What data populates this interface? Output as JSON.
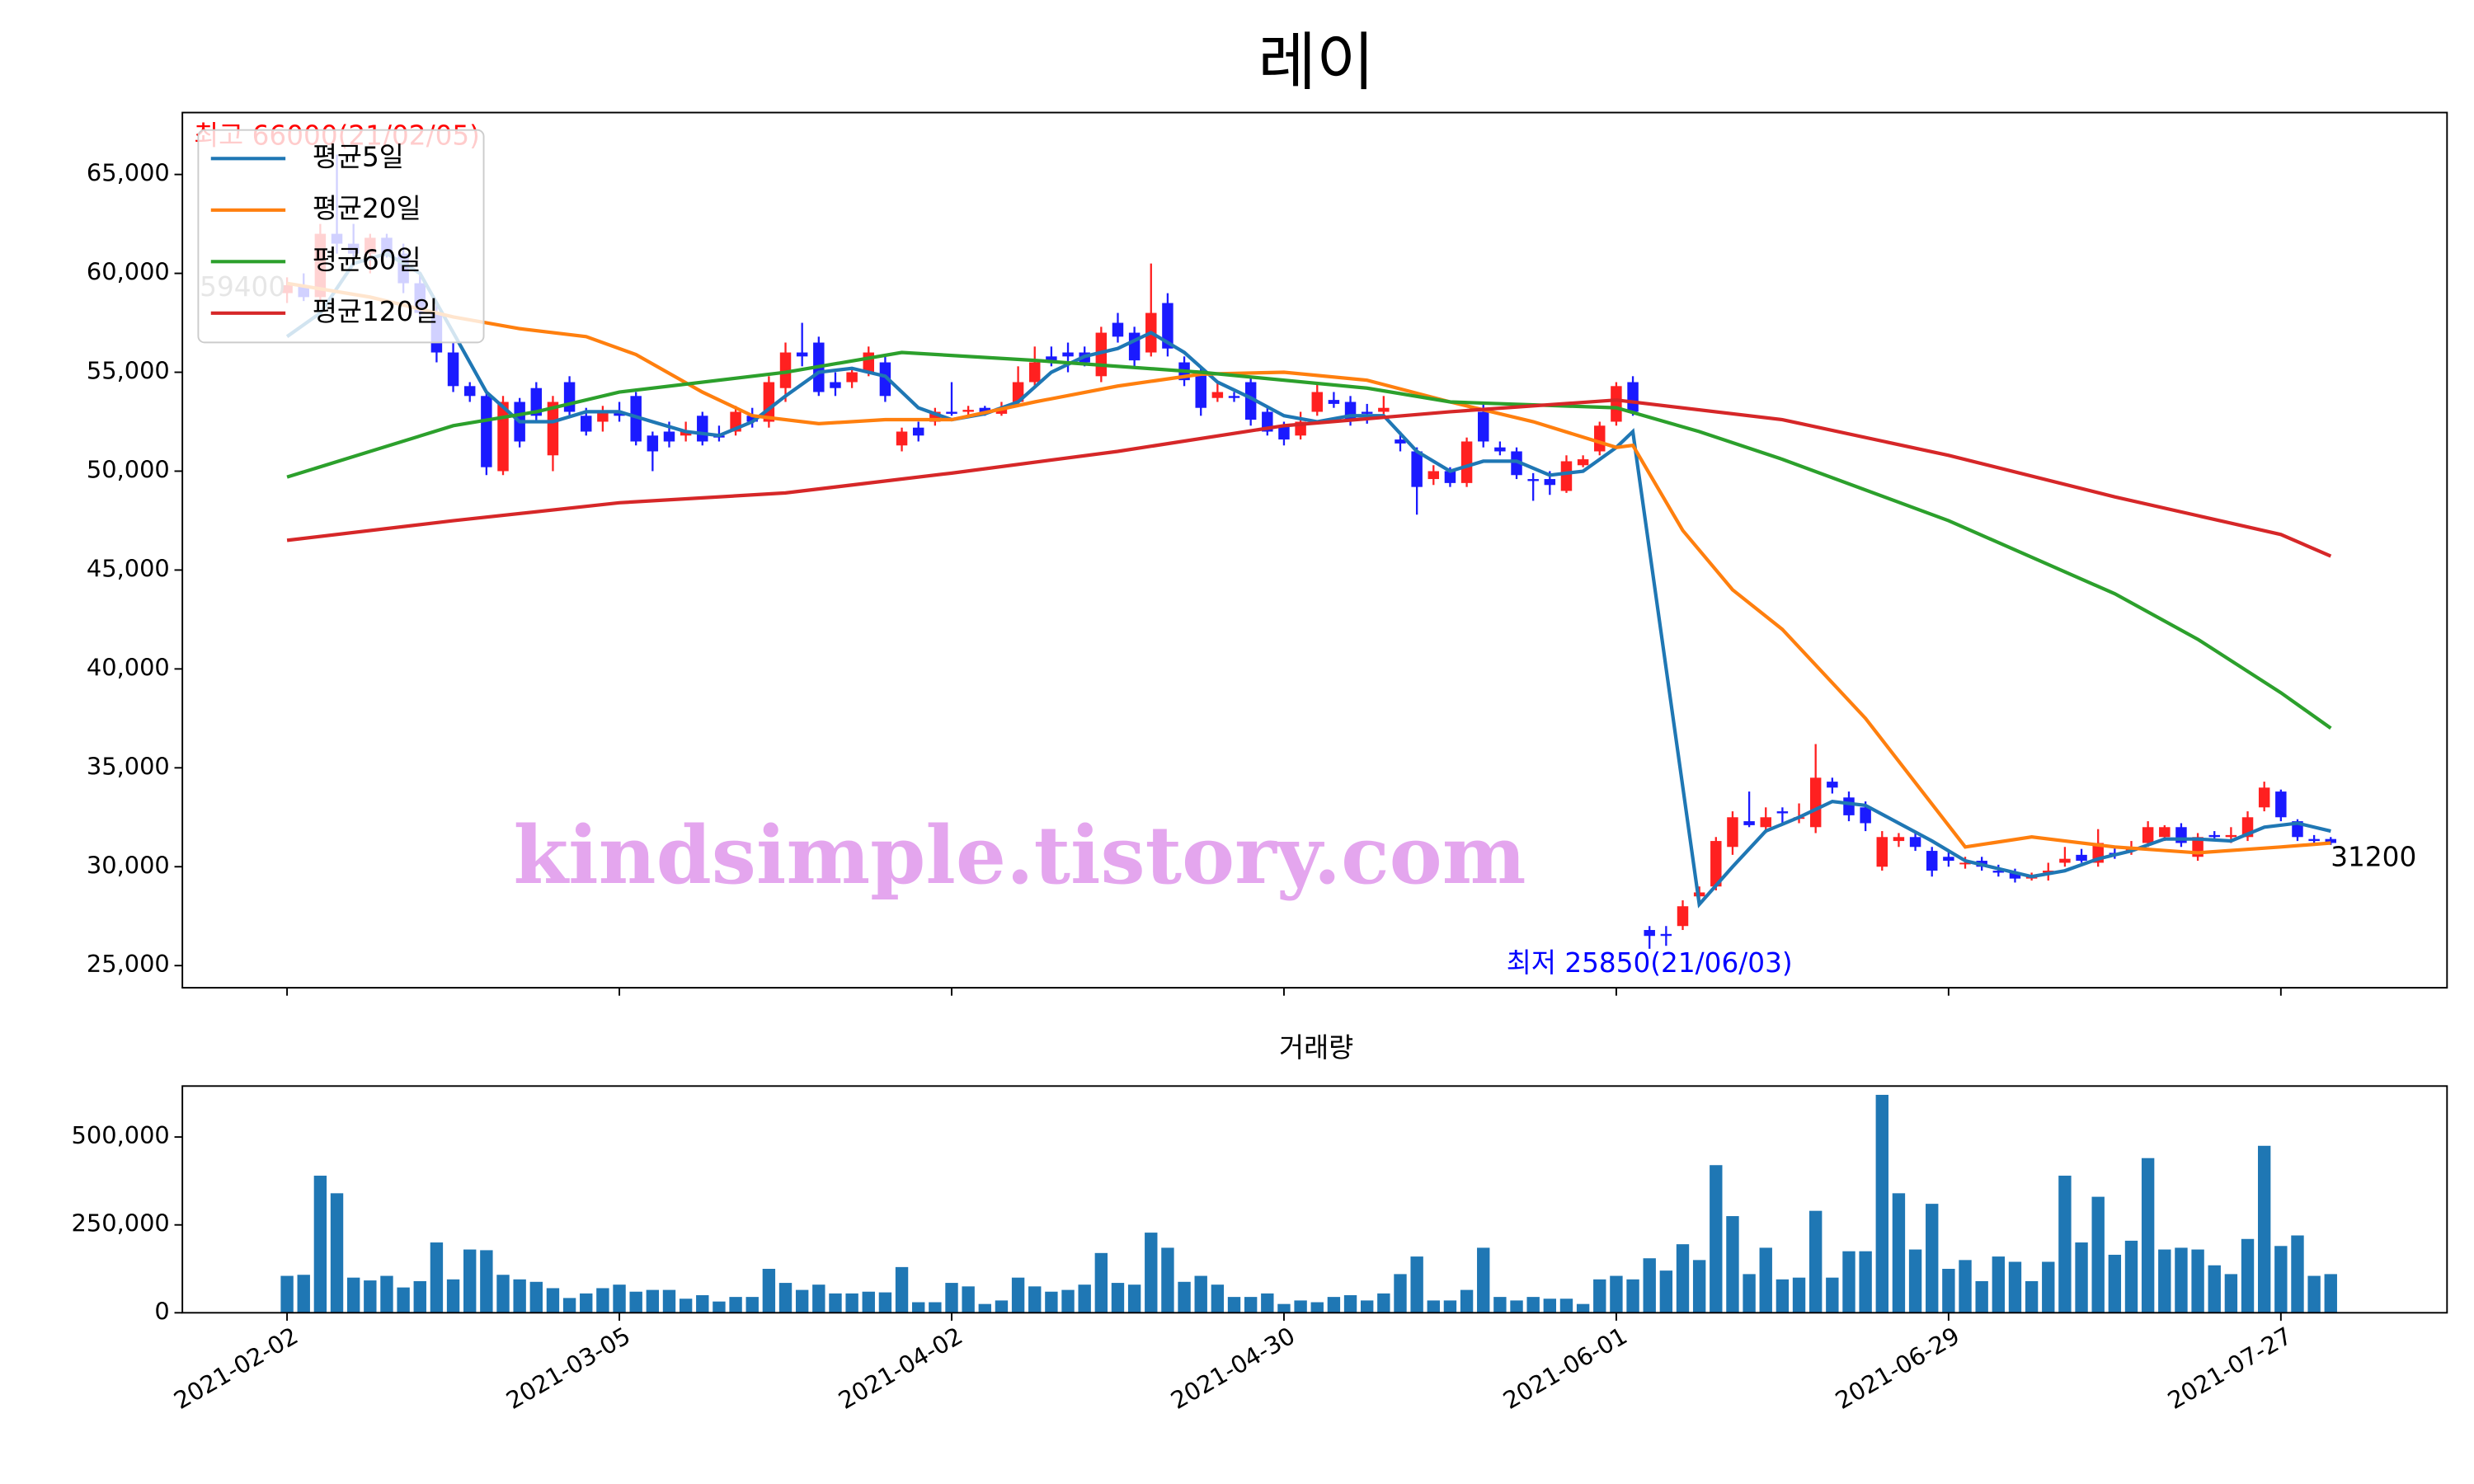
{
  "chart_data": [
    {
      "type": "candlestick",
      "title": "레이",
      "xlim": [
        -6.3,
        130
      ],
      "ylim": [
        23880,
        68130
      ],
      "yticks": [
        {
          "value": 25000,
          "label": "25,000"
        },
        {
          "value": 30000,
          "label": "30,000"
        },
        {
          "value": 35000,
          "label": "35,000"
        },
        {
          "value": 40000,
          "label": "40,000"
        },
        {
          "value": 45000,
          "label": "45,000"
        },
        {
          "value": 50000,
          "label": "50,000"
        },
        {
          "value": 55000,
          "label": "55,000"
        },
        {
          "value": 60000,
          "label": "60,000"
        },
        {
          "value": 65000,
          "label": "65,000"
        }
      ],
      "up_color": "#ff2020",
      "down_color": "#1a1aff",
      "open": [
        59000,
        59400,
        58800,
        62000,
        61500,
        61000,
        61800,
        61000,
        59500,
        58000,
        56000,
        54300,
        53800,
        50000,
        53500,
        54200,
        50800,
        54500,
        52800,
        52500,
        53000,
        53800,
        51800,
        52000,
        51800,
        52800,
        51800,
        52000,
        52800,
        52500,
        54200,
        56000,
        56500,
        54500,
        54500,
        55000,
        55500,
        51300,
        52200,
        52500,
        53000,
        53000,
        53200,
        52900,
        53500,
        54500,
        55800,
        56000,
        56000,
        54800,
        57500,
        57000,
        56000,
        58500,
        55500,
        55000,
        53700,
        53800,
        54500,
        53000,
        52300,
        51800,
        53000,
        53600,
        53500,
        53000,
        53000,
        51600,
        51000,
        49600,
        50000,
        49400,
        53000,
        51200,
        51000,
        49600,
        49600,
        49000,
        50300,
        51000,
        52500,
        54500,
        26800,
        26600,
        27000,
        28500,
        29000,
        31000,
        32300,
        32000,
        32800,
        32500,
        32000,
        34300,
        33500,
        33000,
        30000,
        31300,
        31500,
        30800,
        30500,
        30200,
        30300,
        29800,
        29700,
        29400,
        29700,
        30200,
        30600,
        30200,
        30700,
        30800,
        31200,
        31500,
        32000,
        30500,
        31600,
        31500,
        31500,
        33000,
        33800,
        32300,
        31400,
        31400
      ],
      "high": [
        59800,
        60000,
        62500,
        66000,
        62500,
        62000,
        62000,
        61500,
        60000,
        58500,
        56500,
        54500,
        54000,
        53800,
        53700,
        54500,
        53800,
        54800,
        53200,
        53300,
        53500,
        54000,
        52000,
        52500,
        52500,
        53000,
        52300,
        53300,
        53200,
        54800,
        56500,
        57500,
        56800,
        55000,
        55200,
        56300,
        55800,
        52200,
        52500,
        53200,
        54500,
        53300,
        53300,
        53500,
        55300,
        56300,
        56300,
        56500,
        56300,
        57300,
        58000,
        57300,
        60500,
        59000,
        55800,
        55300,
        54500,
        54000,
        54800,
        53200,
        52500,
        53000,
        54500,
        54000,
        53800,
        53400,
        53800,
        52000,
        51200,
        50300,
        50200,
        51700,
        53400,
        51500,
        51200,
        49900,
        50000,
        50800,
        50800,
        52500,
        54500,
        54800,
        27000,
        27000,
        28300,
        29000,
        31500,
        32800,
        33800,
        33000,
        33000,
        33200,
        36200,
        34500,
        33800,
        33300,
        31800,
        31700,
        31700,
        31000,
        30800,
        30500,
        30500,
        30100,
        29900,
        29700,
        30200,
        31000,
        30900,
        31900,
        31000,
        31300,
        32300,
        32100,
        32200,
        31700,
        31800,
        32000,
        32800,
        34300,
        33900,
        32400,
        31600,
        31500
      ],
      "low": [
        58500,
        58600,
        58500,
        61000,
        60500,
        60000,
        60800,
        59000,
        57500,
        55500,
        54000,
        53500,
        49800,
        49800,
        51200,
        52500,
        50000,
        52800,
        51800,
        52000,
        52500,
        51300,
        50000,
        51200,
        51500,
        51300,
        51500,
        51800,
        52200,
        52200,
        53500,
        55300,
        53800,
        53800,
        54200,
        54800,
        53500,
        51000,
        51500,
        52300,
        52800,
        52800,
        52800,
        52800,
        53300,
        54300,
        55300,
        55000,
        55300,
        54500,
        56500,
        55200,
        55800,
        55800,
        54300,
        52800,
        53500,
        53500,
        52300,
        51800,
        51300,
        51600,
        52800,
        53200,
        52300,
        52400,
        52800,
        51000,
        47800,
        49300,
        49200,
        49200,
        51200,
        50800,
        49600,
        48500,
        48800,
        48900,
        50200,
        50800,
        52300,
        52800,
        25850,
        26000,
        26800,
        28300,
        28800,
        30600,
        32000,
        31700,
        32200,
        32200,
        31700,
        33700,
        32300,
        31800,
        29800,
        31000,
        30800,
        29500,
        30000,
        29900,
        29800,
        29500,
        29200,
        29300,
        29300,
        30000,
        30200,
        30000,
        30400,
        30600,
        31000,
        31300,
        31000,
        30300,
        31300,
        31200,
        31300,
        32800,
        32300,
        31300,
        31100,
        31100
      ],
      "close": [
        59400,
        58800,
        62000,
        61500,
        61000,
        61800,
        61000,
        59500,
        58000,
        56000,
        54300,
        53800,
        50200,
        53500,
        51500,
        52800,
        53500,
        53000,
        52000,
        53000,
        52800,
        51500,
        51000,
        51500,
        52000,
        51500,
        51700,
        53000,
        52500,
        54500,
        56000,
        55800,
        54000,
        54200,
        55000,
        56000,
        53800,
        52000,
        51800,
        53000,
        52900,
        53100,
        52900,
        53200,
        54500,
        55500,
        55600,
        55800,
        55500,
        57000,
        56800,
        55600,
        58000,
        56200,
        54600,
        53200,
        54000,
        53700,
        52600,
        52000,
        51600,
        52500,
        54000,
        53400,
        52600,
        52900,
        53200,
        51400,
        49200,
        50000,
        49400,
        51500,
        51500,
        51000,
        49800,
        49500,
        49300,
        50500,
        50600,
        52300,
        54300,
        53000,
        26500,
        26500,
        28000,
        28700,
        31300,
        32500,
        32100,
        32500,
        32700,
        32500,
        34500,
        34000,
        32600,
        32200,
        31500,
        31500,
        31000,
        29800,
        30300,
        30200,
        30000,
        29700,
        29400,
        29500,
        29800,
        30400,
        30300,
        31200,
        30600,
        31000,
        32000,
        32000,
        31200,
        31500,
        31500,
        31600,
        32500,
        34000,
        32500,
        31500,
        31300,
        31200
      ],
      "series": [
        {
          "name": "평균5일",
          "color": "#1f77b4",
          "x": [
            0,
            2,
            4,
            6,
            8,
            10,
            12,
            14,
            16,
            18,
            20,
            22,
            24,
            26,
            28,
            30,
            32,
            34,
            36,
            38,
            40,
            42,
            44,
            46,
            48,
            50,
            52,
            54,
            56,
            58,
            60,
            62,
            64,
            66,
            68,
            70,
            72,
            74,
            76,
            78,
            80,
            81,
            85,
            87,
            89,
            91,
            93,
            95,
            97,
            99,
            101,
            103,
            105,
            107,
            109,
            111,
            113,
            115,
            117,
            119,
            121,
            123
          ],
          "values": [
            56800,
            58000,
            60500,
            61000,
            60000,
            57000,
            54000,
            52500,
            52500,
            53000,
            53000,
            52500,
            52000,
            51800,
            52500,
            53800,
            55000,
            55200,
            54800,
            53200,
            52600,
            52900,
            53500,
            55000,
            55800,
            56200,
            57000,
            56000,
            54500,
            53700,
            52800,
            52500,
            52800,
            52800,
            51000,
            50000,
            50500,
            50500,
            49800,
            50000,
            51200,
            52000,
            28100,
            30000,
            31800,
            32500,
            33300,
            33100,
            32200,
            31300,
            30300,
            29900,
            29500,
            29800,
            30400,
            30800,
            31400,
            31400,
            31300,
            32000,
            32200,
            31800
          ]
        },
        {
          "name": "평균20일",
          "color": "#ff7f0e",
          "x": [
            0,
            5,
            10,
            14,
            18,
            21,
            25,
            28,
            32,
            36,
            40,
            45,
            50,
            55,
            60,
            65,
            70,
            75,
            80,
            81,
            84,
            87,
            90,
            95,
            101,
            105,
            110,
            115,
            120,
            123
          ],
          "values": [
            59500,
            58800,
            57800,
            57200,
            56800,
            55900,
            54000,
            52800,
            52400,
            52600,
            52600,
            53500,
            54300,
            54900,
            55000,
            54600,
            53500,
            52500,
            51200,
            51300,
            47000,
            44000,
            42000,
            37500,
            31000,
            31500,
            31000,
            30700,
            31000,
            31200
          ]
        },
        {
          "name": "평균60일",
          "color": "#2ca02c",
          "x": [
            0,
            5,
            10,
            15,
            20,
            30,
            37,
            45,
            55,
            65,
            70,
            80,
            85,
            90,
            100,
            110,
            115,
            120,
            123
          ],
          "values": [
            49700,
            51000,
            52300,
            53000,
            54000,
            55000,
            56000,
            55600,
            55000,
            54200,
            53500,
            53200,
            52000,
            50600,
            47500,
            43800,
            41500,
            38800,
            37000
          ]
        },
        {
          "name": "평균120일",
          "color": "#d62728",
          "x": [
            0,
            10,
            20,
            30,
            40,
            50,
            60,
            70,
            80,
            90,
            100,
            110,
            120,
            123
          ],
          "values": [
            46500,
            47500,
            48400,
            48900,
            49900,
            51000,
            52300,
            53000,
            53600,
            52600,
            50800,
            48700,
            46800,
            45700
          ]
        }
      ],
      "legend": "upper left",
      "annotations": [
        {
          "text": "최고 66000(21/02/05)",
          "x": 3,
          "y": 66000,
          "color": "#ff0000",
          "ha": "center",
          "va": "bottom"
        },
        {
          "text": "최저 25850(21/06/03)",
          "x": 82,
          "y": 25850,
          "color": "#0000ff",
          "ha": "center",
          "va": "top"
        },
        {
          "text": "59400",
          "x": 0,
          "y": 59400,
          "color": "#808080",
          "ha": "right",
          "va": "center"
        },
        {
          "text": "31200",
          "x": 123,
          "y": 31200,
          "color": "#000000",
          "ha": "left",
          "va": "top"
        }
      ],
      "watermark": "kindsimple.tistory.com"
    },
    {
      "type": "bar",
      "title": "거래량",
      "color": "#1f77b4",
      "xlim": [
        -6.3,
        130
      ],
      "ylim": [
        0,
        645000
      ],
      "yticks": [
        0,
        {
          "value": 250000,
          "label": "250,000"
        },
        {
          "value": 500000,
          "label": "500,000"
        }
      ],
      "categories": [
        "2021-02-02",
        null,
        null,
        null,
        null,
        null,
        null,
        null,
        null,
        null,
        null,
        null,
        null,
        null,
        null,
        null,
        null,
        null,
        null,
        null,
        "2021-03-05",
        null,
        null,
        null,
        null,
        null,
        null,
        null,
        null,
        null,
        null,
        null,
        null,
        null,
        null,
        null,
        null,
        null,
        null,
        null,
        "2021-04-02",
        null,
        null,
        null,
        null,
        null,
        null,
        null,
        null,
        null,
        null,
        null,
        null,
        null,
        null,
        null,
        null,
        null,
        null,
        null,
        "2021-04-30",
        null,
        null,
        null,
        null,
        null,
        null,
        null,
        null,
        null,
        null,
        null,
        null,
        null,
        null,
        null,
        null,
        null,
        null,
        null,
        "2021-06-01",
        null,
        null,
        null,
        null,
        null,
        null,
        null,
        null,
        null,
        null,
        null,
        null,
        null,
        null,
        null,
        null,
        null,
        null,
        null,
        "2021-06-29",
        null,
        null,
        null,
        null,
        null,
        null,
        null,
        null,
        null,
        null,
        null,
        null,
        null,
        null,
        null,
        null,
        null,
        null,
        null,
        "2021-07-27",
        null,
        null,
        null
      ],
      "values": [
        105000,
        108000,
        390000,
        340000,
        100000,
        92000,
        105000,
        72000,
        90000,
        200000,
        95000,
        180000,
        178000,
        108000,
        95000,
        88000,
        70000,
        42000,
        55000,
        70000,
        80000,
        60000,
        65000,
        65000,
        40000,
        50000,
        32000,
        45000,
        45000,
        125000,
        85000,
        65000,
        80000,
        55000,
        55000,
        60000,
        58000,
        130000,
        30000,
        30000,
        85000,
        75000,
        25000,
        35000,
        100000,
        75000,
        60000,
        65000,
        80000,
        170000,
        85000,
        80000,
        228000,
        185000,
        88000,
        105000,
        80000,
        45000,
        45000,
        55000,
        25000,
        35000,
        30000,
        45000,
        50000,
        35000,
        55000,
        110000,
        160000,
        35000,
        35000,
        65000,
        185000,
        45000,
        35000,
        45000,
        40000,
        40000,
        25000,
        95000,
        105000,
        95000,
        155000,
        120000,
        195000,
        150000,
        420000,
        275000,
        110000,
        185000,
        95000,
        100000,
        290000,
        100000,
        175000,
        175000,
        620000,
        340000,
        180000,
        310000,
        125000,
        150000,
        90000,
        160000,
        145000,
        90000,
        145000,
        390000,
        200000,
        330000,
        165000,
        205000,
        440000,
        180000,
        185000,
        180000,
        135000,
        110000,
        210000,
        475000,
        190000,
        220000,
        105000,
        110000
      ]
    }
  ]
}
